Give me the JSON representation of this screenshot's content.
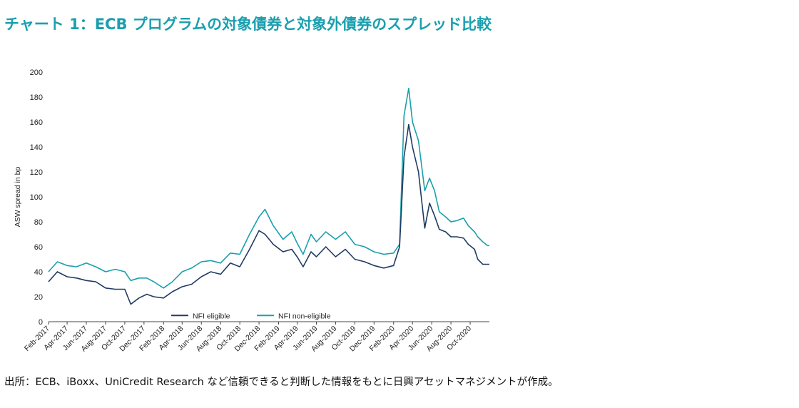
{
  "title": "チャート 1：ECB プログラムの対象債券と対象外債券のスプレッド比較",
  "source": "出所：ECB、iBoxx、UniCredit Research など信頼できると判断した情報をもとに日興アセットマネジメントが作成。",
  "chart_data": {
    "type": "line",
    "title": "",
    "ylabel": "ASW spread in bp",
    "xlabel": "",
    "ylim": [
      0,
      200
    ],
    "yticks": [
      0,
      20,
      40,
      60,
      80,
      100,
      120,
      140,
      160,
      180,
      200
    ],
    "xlim": [
      "2017-02-01",
      "2020-12-01"
    ],
    "xticks": [
      "Feb-2017",
      "Apr-2017",
      "Jun-2017",
      "Aug-2017",
      "Oct-2017",
      "Dec-2017",
      "Feb-2018",
      "Apr-2018",
      "Jun-2018",
      "Aug-2018",
      "Oct-2018",
      "Dec-2018",
      "Feb-2019",
      "Apr-2019",
      "Jun-2019",
      "Aug-2019",
      "Oct-2019",
      "Dec-2019",
      "Feb-2020",
      "Apr-2020",
      "Jun-2020",
      "Aug-2020",
      "Oct-2020"
    ],
    "grid": false,
    "legend_position": "bottom-center",
    "series": [
      {
        "name": "NFI eligible",
        "color": "#1f3b63",
        "x": [
          "2017-02-01",
          "2017-03-01",
          "2017-04-01",
          "2017-05-01",
          "2017-06-01",
          "2017-07-01",
          "2017-08-01",
          "2017-09-01",
          "2017-10-01",
          "2017-10-20",
          "2017-11-15",
          "2017-12-10",
          "2018-01-01",
          "2018-02-01",
          "2018-03-01",
          "2018-04-01",
          "2018-05-01",
          "2018-06-01",
          "2018-07-01",
          "2018-08-01",
          "2018-09-01",
          "2018-10-01",
          "2018-11-01",
          "2018-12-01",
          "2018-12-20",
          "2019-01-15",
          "2019-02-15",
          "2019-03-15",
          "2019-04-01",
          "2019-04-20",
          "2019-05-15",
          "2019-06-01",
          "2019-07-01",
          "2019-08-01",
          "2019-09-01",
          "2019-10-01",
          "2019-11-01",
          "2019-12-01",
          "2020-01-01",
          "2020-02-01",
          "2020-02-20",
          "2020-03-05",
          "2020-03-20",
          "2020-04-01",
          "2020-04-20",
          "2020-05-10",
          "2020-05-25",
          "2020-06-10",
          "2020-06-25",
          "2020-07-15",
          "2020-08-01",
          "2020-08-20",
          "2020-09-10",
          "2020-09-25",
          "2020-10-15",
          "2020-10-25",
          "2020-11-10",
          "2020-11-25",
          "2020-12-01"
        ],
        "y": [
          32,
          40,
          36,
          35,
          33,
          32,
          27,
          26,
          26,
          14,
          19,
          22,
          20,
          19,
          24,
          28,
          30,
          36,
          40,
          38,
          47,
          44,
          58,
          73,
          70,
          62,
          56,
          58,
          52,
          44,
          56,
          52,
          60,
          52,
          58,
          50,
          48,
          45,
          43,
          45,
          60,
          132,
          158,
          140,
          120,
          75,
          95,
          85,
          74,
          72,
          68,
          68,
          67,
          62,
          58,
          50,
          46,
          46,
          46
        ]
      },
      {
        "name": "NFI non-eligible",
        "color": "#1aa0ac",
        "x": [
          "2017-02-01",
          "2017-03-01",
          "2017-04-01",
          "2017-05-01",
          "2017-06-01",
          "2017-07-01",
          "2017-08-01",
          "2017-09-01",
          "2017-10-01",
          "2017-10-20",
          "2017-11-15",
          "2017-12-10",
          "2018-01-01",
          "2018-02-01",
          "2018-03-01",
          "2018-04-01",
          "2018-05-01",
          "2018-06-01",
          "2018-07-01",
          "2018-08-01",
          "2018-09-01",
          "2018-10-01",
          "2018-11-01",
          "2018-12-01",
          "2018-12-20",
          "2019-01-15",
          "2019-02-15",
          "2019-03-15",
          "2019-04-01",
          "2019-04-20",
          "2019-05-15",
          "2019-06-01",
          "2019-07-01",
          "2019-08-01",
          "2019-09-01",
          "2019-10-01",
          "2019-11-01",
          "2019-12-01",
          "2020-01-01",
          "2020-02-01",
          "2020-02-20",
          "2020-03-05",
          "2020-03-20",
          "2020-04-01",
          "2020-04-20",
          "2020-05-10",
          "2020-05-25",
          "2020-06-10",
          "2020-06-25",
          "2020-07-15",
          "2020-08-01",
          "2020-08-20",
          "2020-09-10",
          "2020-09-25",
          "2020-10-15",
          "2020-10-25",
          "2020-11-10",
          "2020-11-25",
          "2020-12-01"
        ],
        "y": [
          40,
          48,
          45,
          44,
          47,
          44,
          40,
          42,
          40,
          33,
          35,
          35,
          32,
          27,
          32,
          40,
          43,
          48,
          49,
          47,
          55,
          54,
          70,
          84,
          90,
          77,
          66,
          72,
          63,
          54,
          70,
          64,
          72,
          66,
          72,
          62,
          60,
          56,
          54,
          55,
          62,
          165,
          187,
          160,
          145,
          105,
          115,
          105,
          88,
          84,
          80,
          81,
          83,
          77,
          72,
          68,
          64,
          61,
          61
        ]
      }
    ]
  }
}
